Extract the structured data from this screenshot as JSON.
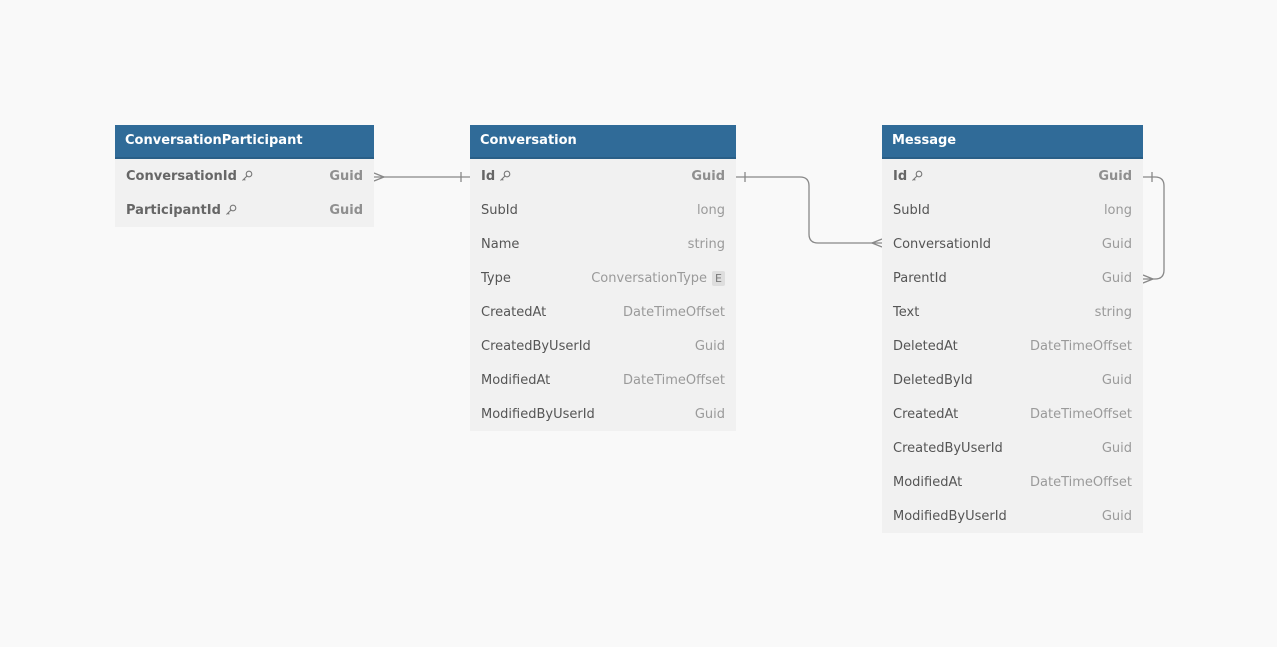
{
  "entities": [
    {
      "name": "ConversationParticipant",
      "fields": [
        {
          "name": "ConversationId",
          "type": "Guid",
          "pk": true,
          "key_icon": "key-icon"
        },
        {
          "name": "ParticipantId",
          "type": "Guid",
          "pk": true,
          "key_icon": "key-icon"
        }
      ]
    },
    {
      "name": "Conversation",
      "fields": [
        {
          "name": "Id",
          "type": "Guid",
          "pk": true,
          "key_icon": "key-icon"
        },
        {
          "name": "SubId",
          "type": "long"
        },
        {
          "name": "Name",
          "type": "string"
        },
        {
          "name": "Type",
          "type": "ConversationType",
          "badge": "E"
        },
        {
          "name": "CreatedAt",
          "type": "DateTimeOffset"
        },
        {
          "name": "CreatedByUserId",
          "type": "Guid"
        },
        {
          "name": "ModifiedAt",
          "type": "DateTimeOffset"
        },
        {
          "name": "ModifiedByUserId",
          "type": "Guid"
        }
      ]
    },
    {
      "name": "Message",
      "fields": [
        {
          "name": "Id",
          "type": "Guid",
          "pk": true,
          "key_icon": "key-icon"
        },
        {
          "name": "SubId",
          "type": "long"
        },
        {
          "name": "ConversationId",
          "type": "Guid"
        },
        {
          "name": "ParentId",
          "type": "Guid"
        },
        {
          "name": "Text",
          "type": "string"
        },
        {
          "name": "DeletedAt",
          "type": "DateTimeOffset"
        },
        {
          "name": "DeletedById",
          "type": "Guid"
        },
        {
          "name": "CreatedAt",
          "type": "DateTimeOffset"
        },
        {
          "name": "CreatedByUserId",
          "type": "Guid"
        },
        {
          "name": "ModifiedAt",
          "type": "DateTimeOffset"
        },
        {
          "name": "ModifiedByUserId",
          "type": "Guid"
        }
      ]
    }
  ],
  "relationships": [
    {
      "from": "ConversationParticipant.ConversationId",
      "to": "Conversation.Id",
      "cardinality": "many-to-one"
    },
    {
      "from": "Message.ConversationId",
      "to": "Conversation.Id",
      "cardinality": "many-to-one"
    },
    {
      "from": "Message.ParentId",
      "to": "Message.Id",
      "cardinality": "many-to-one"
    }
  ],
  "colors": {
    "header": "#306b98",
    "header_text": "#ffffff",
    "body": "#f1f1f1",
    "connector": "#888888",
    "background": "#f9f9f9"
  }
}
